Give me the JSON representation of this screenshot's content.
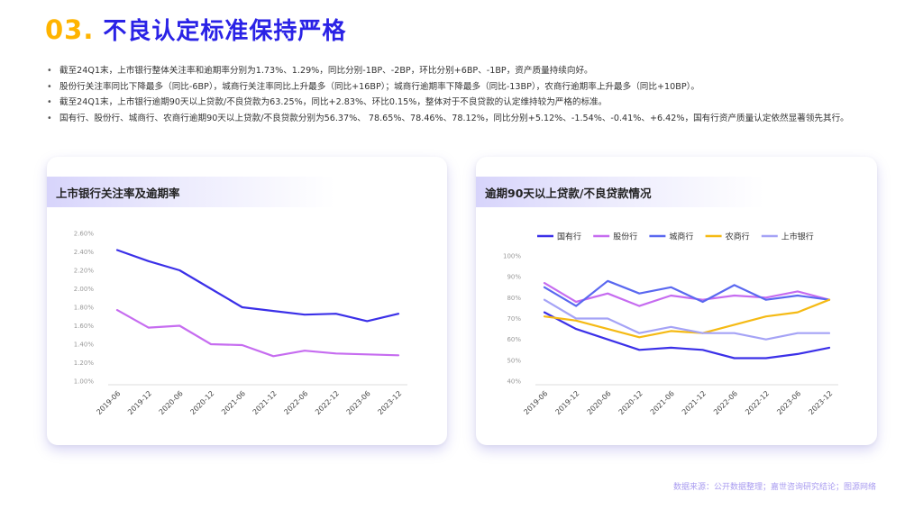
{
  "title": {
    "number": "03.",
    "text": "不良认定标准保持严格"
  },
  "bullets": [
    "截至24Q1末，上市银行整体关注率和逾期率分别为1.73%、1.29%，同比分别-1BP、-2BP，环比分别+6BP、-1BP，资产质量持续向好。",
    "股份行关注率同比下降最多（同比-6BP），城商行关注率同比上升最多（同比+16BP）；城商行逾期率下降最多（同比-13BP），农商行逾期率上升最多（同比+10BP）。",
    "截至24Q1末，上市银行逾期90天以上贷款/不良贷款为63.25%，同比+2.83%、环比0.15%，整体对于不良贷款的认定维持较为严格的标准。",
    "国有行、股份行、城商行、农商行逾期90天以上贷款/不良贷款分别为56.37%、 78.65%、78.46%、78.12%，同比分别+5.12%、-1.54%、-0.41%、+6.42%，国有行资产质量认定依然显著领先其行。"
  ],
  "left_card": {
    "title": "上市银行关注率及逾期率"
  },
  "right_card": {
    "title": "逾期90天以上贷款/不良贷款情况"
  },
  "footer": "数据来源：公开数据整理；嘉世咨询研究结论；图源网络",
  "chart_data": [
    {
      "type": "line",
      "title": "上市银行关注率及逾期率",
      "x": [
        "2019-06",
        "2019-12",
        "2020-06",
        "2020-12",
        "2021-06",
        "2021-12",
        "2022-06",
        "2022-12",
        "2023-06",
        "2023-12"
      ],
      "ylim": [
        1.0,
        2.6
      ],
      "yticks": [
        "1.00%",
        "1.20%",
        "1.40%",
        "1.60%",
        "1.80%",
        "2.00%",
        "2.20%",
        "2.40%",
        "2.60%"
      ],
      "grid": false,
      "series": [
        {
          "values": [
            2.42,
            2.3,
            2.2,
            2.0,
            1.8,
            1.76,
            1.72,
            1.73,
            1.65,
            1.73
          ],
          "color": "#3B30E8"
        },
        {
          "values": [
            1.77,
            1.58,
            1.6,
            1.4,
            1.39,
            1.27,
            1.33,
            1.3,
            1.29,
            1.28
          ],
          "color": "#C66CF0"
        }
      ]
    },
    {
      "type": "line",
      "title": "逾期90天以上贷款/不良贷款情况",
      "x": [
        "2019-06",
        "2019-12",
        "2020-06",
        "2020-12",
        "2021-06",
        "2021-12",
        "2022-06",
        "2022-12",
        "2023-06",
        "2023-12"
      ],
      "ylim": [
        40,
        100
      ],
      "yticks": [
        "40%",
        "50%",
        "60%",
        "70%",
        "80%",
        "90%",
        "100%"
      ],
      "grid": false,
      "legend": "top",
      "series": [
        {
          "name": "国有行",
          "values": [
            73,
            65,
            60,
            55,
            56,
            55,
            51,
            51,
            53,
            56
          ],
          "color": "#3B30E8"
        },
        {
          "name": "股份行",
          "values": [
            87,
            78,
            82,
            76,
            81,
            79,
            81,
            80,
            83,
            79
          ],
          "color": "#C66CF0"
        },
        {
          "name": "城商行",
          "values": [
            85,
            76,
            88,
            82,
            85,
            78,
            86,
            79,
            81,
            79
          ],
          "color": "#5A68F0"
        },
        {
          "name": "农商行",
          "values": [
            71,
            69,
            65,
            61,
            64,
            63,
            67,
            71,
            73,
            79
          ],
          "color": "#F5BA14"
        },
        {
          "name": "上市银行",
          "values": [
            79,
            70,
            70,
            63,
            66,
            63,
            63,
            60,
            63,
            63
          ],
          "color": "#A5A3F6"
        }
      ]
    }
  ]
}
